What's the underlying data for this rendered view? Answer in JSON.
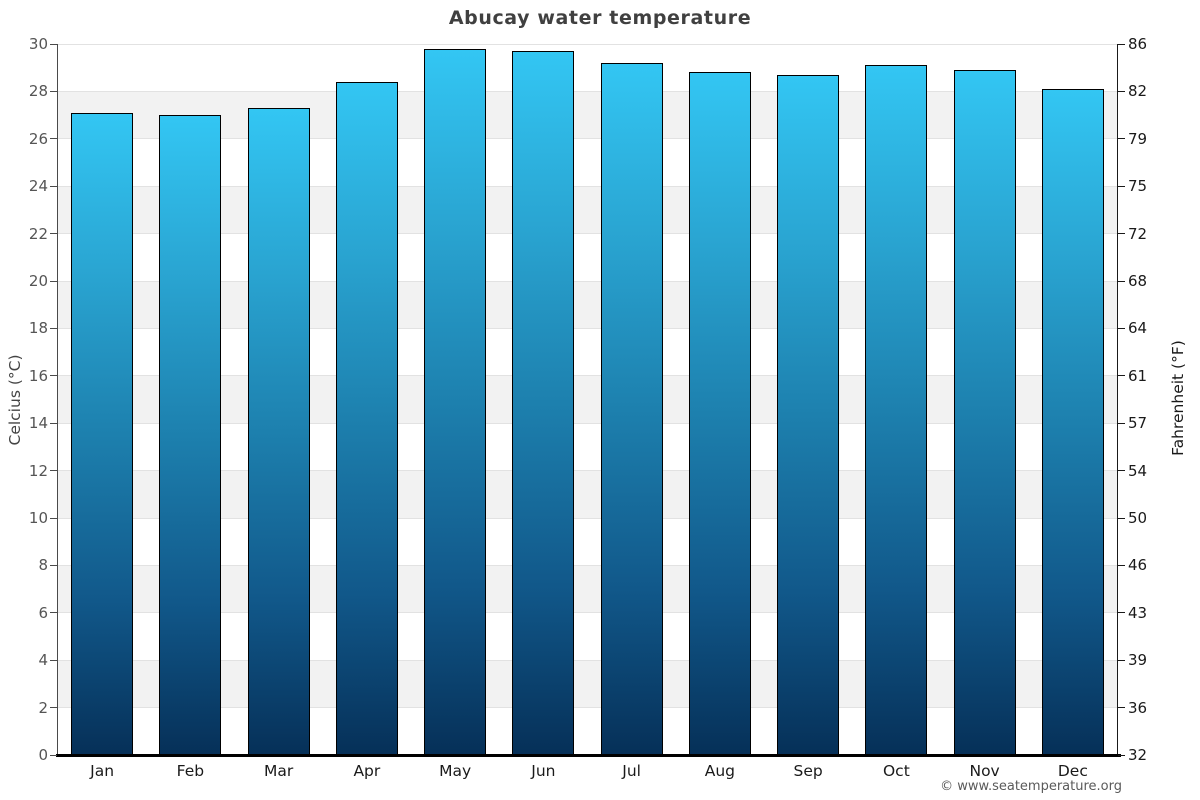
{
  "chart_data": {
    "type": "bar",
    "title": "Abucay water temperature",
    "categories": [
      "Jan",
      "Feb",
      "Mar",
      "Apr",
      "May",
      "Jun",
      "Jul",
      "Aug",
      "Sep",
      "Oct",
      "Nov",
      "Dec"
    ],
    "values": [
      27.1,
      27.0,
      27.3,
      28.4,
      29.8,
      29.7,
      29.2,
      28.8,
      28.7,
      29.1,
      28.9,
      28.1
    ],
    "ylabel_left": "Celcius (°C)",
    "ylabel_right": "Fahrenheit (°F)",
    "ylim": [
      0,
      30
    ],
    "ytick_step": 2,
    "yticks_celsius": [
      "30",
      "28",
      "26",
      "24",
      "22",
      "20",
      "18",
      "16",
      "14",
      "12",
      "10",
      "8",
      "6",
      "4",
      "2",
      "0"
    ],
    "yticks_fahrenheit": [
      "86",
      "82",
      "79",
      "75",
      "72",
      "68",
      "64",
      "61",
      "57",
      "54",
      "50",
      "46",
      "43",
      "39",
      "36",
      "32"
    ],
    "grid": "horizontal-alternating-bands",
    "legend_position": "none"
  },
  "footer": {
    "watermark": "© www.seatemperature.org"
  },
  "colors": {
    "bar_gradient_top": "#33c6f3",
    "bar_gradient_mid": "#1d80ae",
    "bar_gradient_bottom": "#063058",
    "bar_border": "#000000",
    "band_gray": "#f2f2f2",
    "band_white": "#ffffff",
    "gridline": "#e2e2e2",
    "title_text": "#404040",
    "left_tick_text": "#555555",
    "right_tick_text": "#1a1a1a",
    "month_text": "#1a1a1a",
    "watermark_text": "#5a5a5a"
  }
}
